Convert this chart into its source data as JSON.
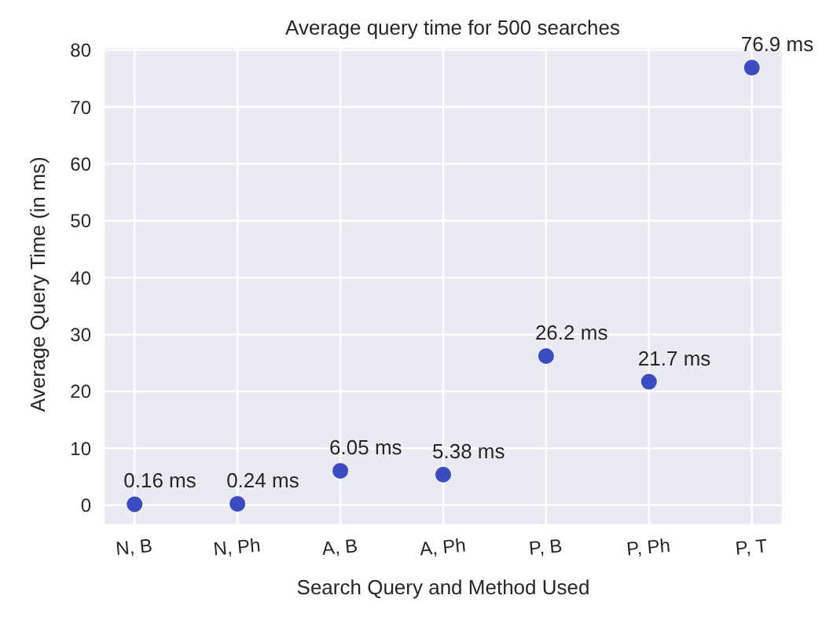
{
  "chart_data": {
    "type": "scatter",
    "title": "Average query time for 500 searches",
    "xlabel": "Search Query and Method Used",
    "ylabel": "Average Query Time (in ms)",
    "categories": [
      "N, B",
      "N, Ph",
      "A, B",
      "A, Ph",
      "P, B",
      "P, Ph",
      "P, T"
    ],
    "series": [
      {
        "color": "#3a4cc0",
        "values": [
          0.16,
          0.24,
          6.05,
          5.38,
          26.2,
          21.7,
          76.9
        ],
        "value_labels": [
          "0.16 ms",
          "0.24 ms",
          "6.05 ms",
          "5.38 ms",
          "26.2 ms",
          "21.7 ms",
          "76.9 ms"
        ]
      }
    ],
    "ylim": [
      -3.5,
      80.5
    ],
    "yticks": [
      0,
      10,
      20,
      30,
      40,
      50,
      60,
      70,
      80
    ],
    "grid": true,
    "marker": "circle"
  }
}
